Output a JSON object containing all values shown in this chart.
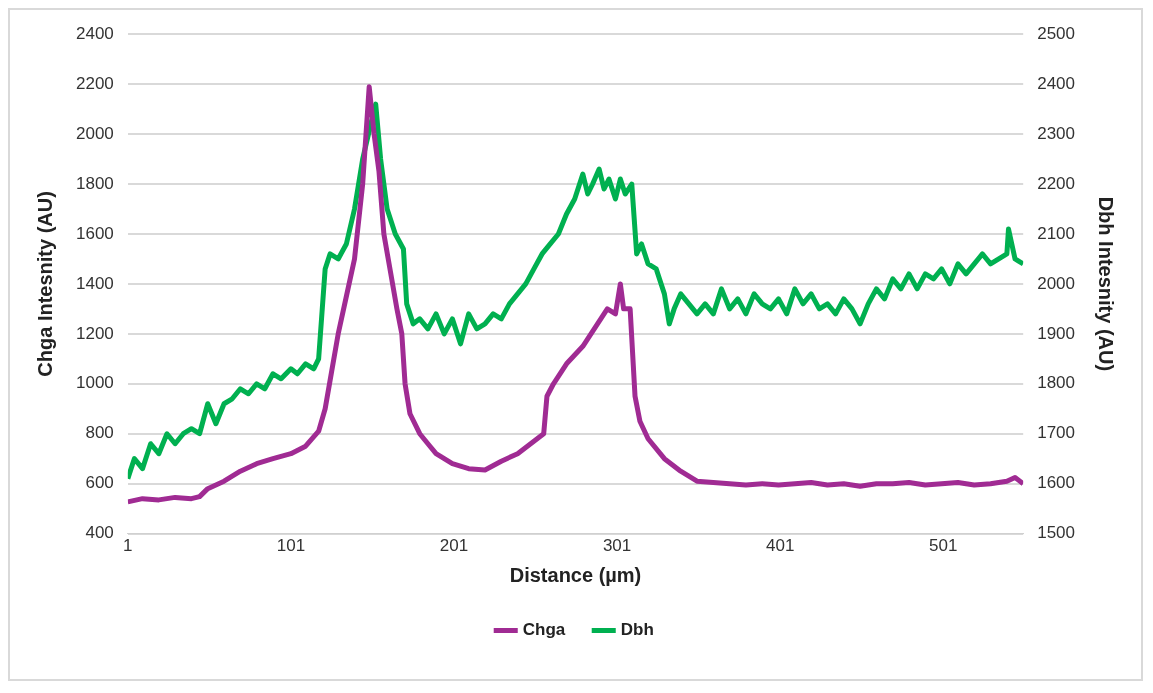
{
  "chart_data": {
    "type": "line",
    "xlabel": "Distance (µm)",
    "ylabel": "Chga Intesnity (AU)",
    "y2label": "Dbh Intesnity (AU)",
    "xlim": [
      1,
      550
    ],
    "xticks": [
      1,
      101,
      201,
      301,
      401,
      501
    ],
    "ylim": [
      400,
      2400
    ],
    "yticks": [
      400,
      600,
      800,
      1000,
      1200,
      1400,
      1600,
      1800,
      2000,
      2200,
      2400
    ],
    "y2lim": [
      1500,
      2500
    ],
    "y2ticks": [
      1500,
      1600,
      1700,
      1800,
      1900,
      2000,
      2100,
      2200,
      2300,
      2400,
      2500
    ],
    "grid": "y",
    "legend": "bottom",
    "series": [
      {
        "name": "Chga",
        "color": "#a02b93",
        "x": [
          1,
          10,
          20,
          30,
          40,
          45,
          50,
          60,
          70,
          80,
          90,
          101,
          110,
          118,
          122,
          126,
          130,
          135,
          140,
          145,
          149,
          152,
          155,
          158,
          162,
          166,
          169,
          171,
          174,
          180,
          185,
          190,
          200,
          210,
          220,
          230,
          240,
          250,
          256,
          258,
          262,
          270,
          280,
          290,
          295,
          300,
          303,
          305,
          309,
          312,
          315,
          320,
          330,
          340,
          350,
          360,
          370,
          380,
          390,
          400,
          410,
          420,
          430,
          440,
          450,
          460,
          470,
          480,
          490,
          500,
          510,
          520,
          530,
          540,
          545,
          550
        ],
        "values": [
          527,
          540,
          535,
          545,
          540,
          548,
          580,
          610,
          650,
          680,
          700,
          720,
          750,
          810,
          900,
          1050,
          1200,
          1350,
          1500,
          1800,
          2190,
          2000,
          1850,
          1600,
          1450,
          1300,
          1200,
          1000,
          880,
          800,
          760,
          720,
          680,
          660,
          655,
          690,
          720,
          770,
          800,
          950,
          1000,
          1080,
          1150,
          1250,
          1300,
          1280,
          1400,
          1300,
          1300,
          950,
          850,
          780,
          700,
          650,
          610,
          605,
          600,
          595,
          600,
          595,
          600,
          605,
          595,
          600,
          590,
          600,
          600,
          605,
          595,
          600,
          605,
          595,
          600,
          610,
          625,
          600
        ]
      },
      {
        "name": "Dbh",
        "color": "#00b050",
        "axis": "y2",
        "x": [
          1,
          5,
          10,
          15,
          20,
          25,
          30,
          35,
          40,
          45,
          50,
          55,
          60,
          65,
          70,
          75,
          80,
          85,
          90,
          95,
          101,
          105,
          110,
          115,
          118,
          122,
          125,
          130,
          135,
          140,
          145,
          150,
          153,
          156,
          160,
          165,
          170,
          172,
          176,
          180,
          185,
          190,
          195,
          200,
          205,
          210,
          215,
          220,
          225,
          230,
          235,
          240,
          245,
          250,
          255,
          260,
          265,
          270,
          275,
          280,
          283,
          286,
          290,
          293,
          296,
          300,
          303,
          306,
          310,
          313,
          316,
          320,
          325,
          330,
          333,
          336,
          340,
          345,
          350,
          355,
          360,
          365,
          370,
          375,
          380,
          385,
          390,
          395,
          400,
          405,
          410,
          415,
          420,
          425,
          430,
          435,
          440,
          445,
          450,
          455,
          460,
          465,
          470,
          475,
          480,
          485,
          490,
          495,
          500,
          505,
          510,
          515,
          520,
          525,
          530,
          535,
          540,
          541,
          545,
          550
        ],
        "values": [
          1610,
          1650,
          1630,
          1680,
          1660,
          1700,
          1680,
          1700,
          1710,
          1700,
          1760,
          1720,
          1760,
          1770,
          1790,
          1780,
          1800,
          1790,
          1820,
          1810,
          1830,
          1820,
          1840,
          1830,
          1850,
          2030,
          2060,
          2050,
          2080,
          2150,
          2250,
          2320,
          2360,
          2250,
          2150,
          2100,
          2070,
          1960,
          1920,
          1930,
          1910,
          1940,
          1900,
          1930,
          1880,
          1940,
          1910,
          1920,
          1940,
          1930,
          1960,
          1980,
          2000,
          2030,
          2060,
          2080,
          2100,
          2140,
          2170,
          2220,
          2180,
          2200,
          2230,
          2190,
          2210,
          2170,
          2210,
          2180,
          2200,
          2060,
          2080,
          2040,
          2030,
          1980,
          1920,
          1950,
          1980,
          1960,
          1940,
          1960,
          1940,
          1990,
          1950,
          1970,
          1940,
          1980,
          1960,
          1950,
          1970,
          1940,
          1990,
          1960,
          1980,
          1950,
          1960,
          1940,
          1970,
          1950,
          1920,
          1960,
          1990,
          1970,
          2010,
          1990,
          2020,
          1990,
          2020,
          2010,
          2030,
          2000,
          2040,
          2020,
          2040,
          2060,
          2040,
          2050,
          2060,
          2110,
          2050,
          2040
        ]
      }
    ]
  }
}
